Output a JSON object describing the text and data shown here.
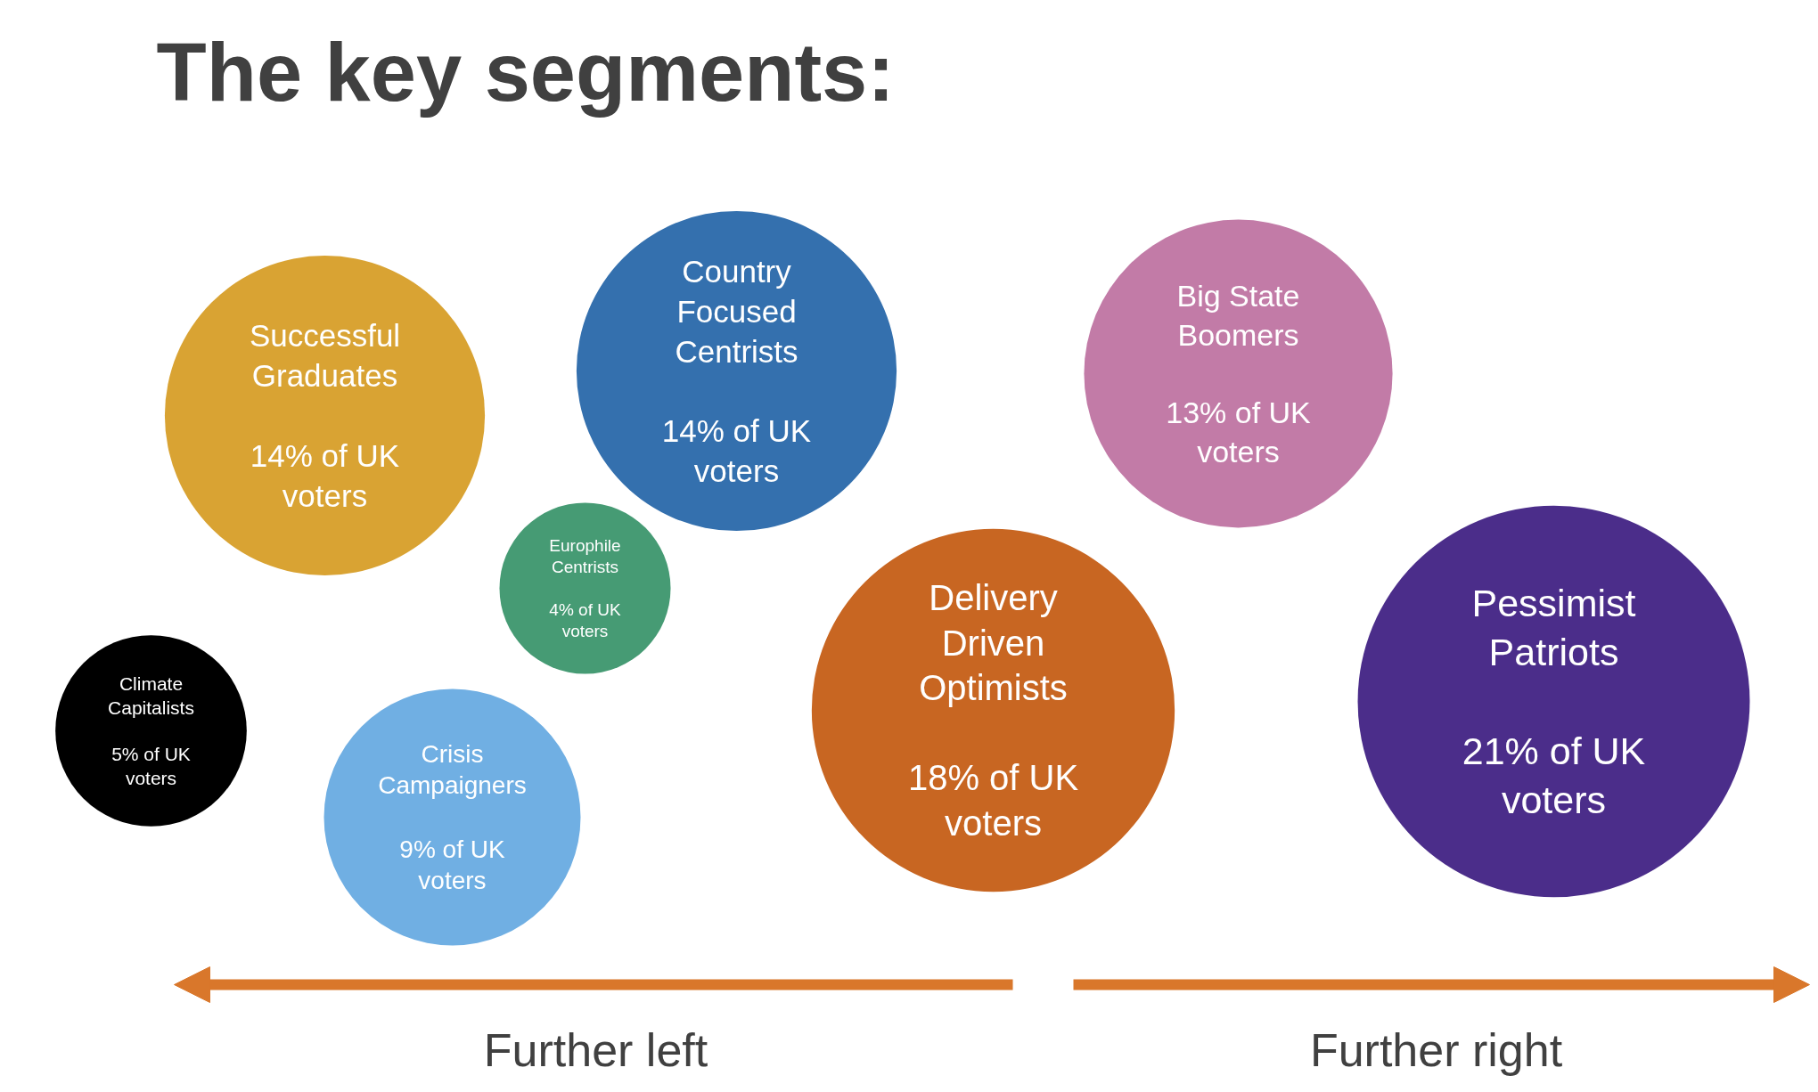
{
  "chart_data": {
    "type": "other",
    "title": "The key segments:",
    "categories": [
      "Successful Graduates",
      "Country Focused Centrists",
      "Europhile Centrists",
      "Climate Capitalists",
      "Crisis Campaigners",
      "Delivery Driven Optimists",
      "Big State Boomers",
      "Pessimist Patriots"
    ],
    "values": [
      14,
      14,
      4,
      5,
      9,
      18,
      13,
      21
    ],
    "value_labels": [
      "14% of UK voters",
      "14% of UK voters",
      "4% of UK voters",
      "5% of UK voters",
      "9% of UK voters",
      "18% of UK voters",
      "13% of UK voters",
      "21% of UK voters"
    ],
    "colors": [
      "#d9a333",
      "#3470ae",
      "#469b74",
      "#000000",
      "#70afe3",
      "#c86622",
      "#c27ba7",
      "#4b2d8a"
    ],
    "annotations": [
      "Further left",
      "Further right"
    ]
  }
}
